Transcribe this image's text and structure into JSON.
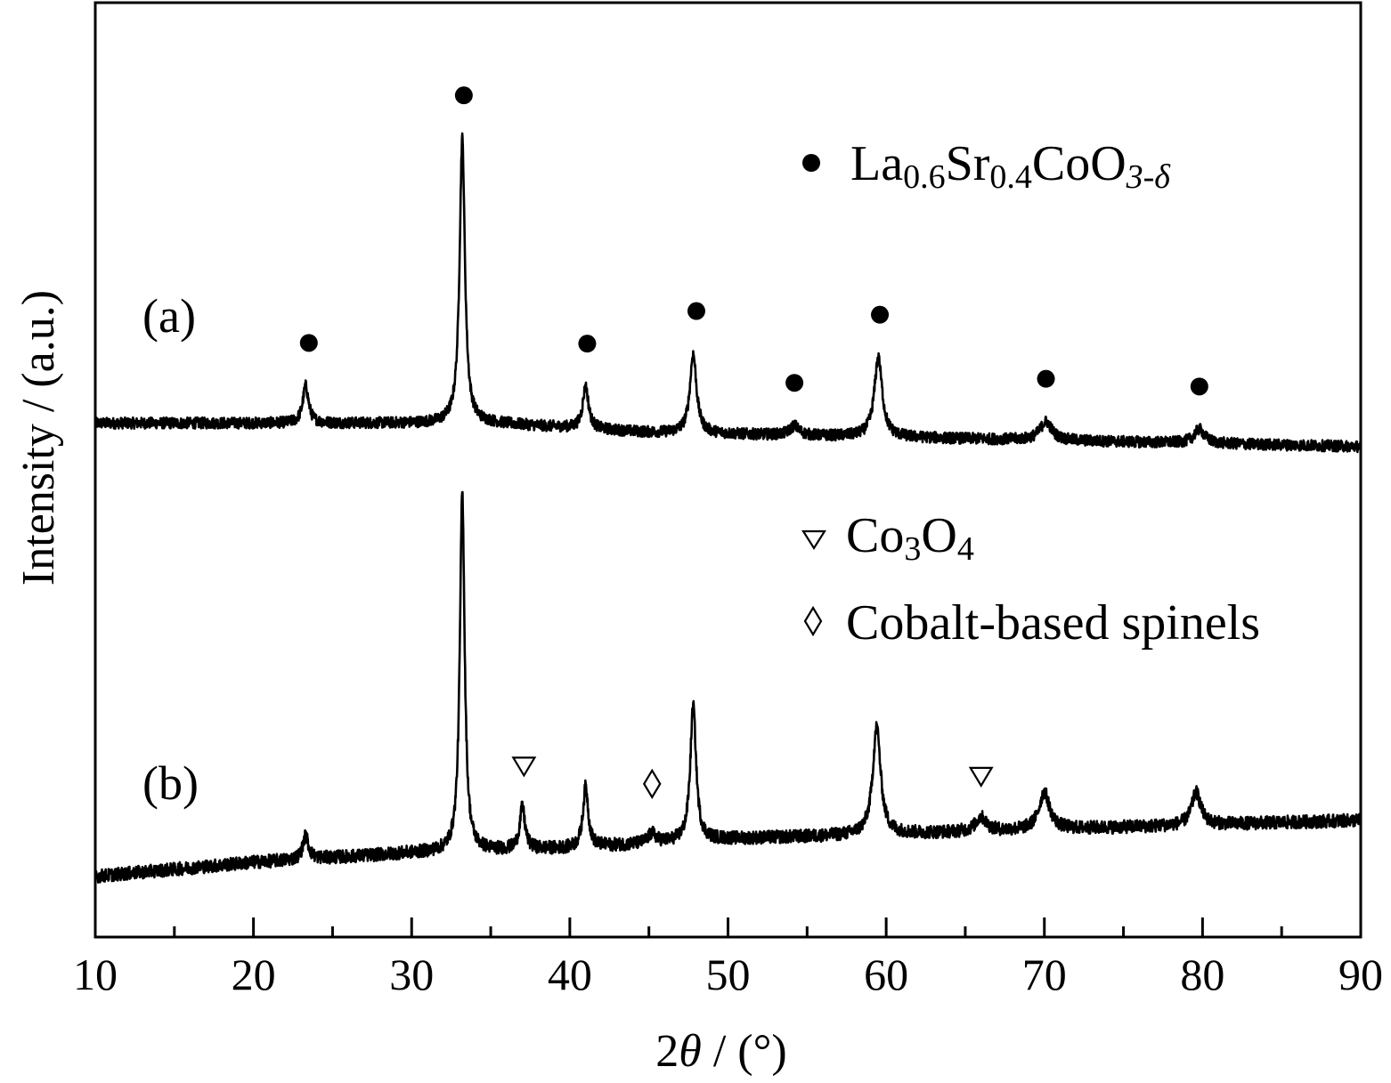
{
  "chart_data": {
    "type": "line",
    "xlabel_prefix": "2",
    "xlabel_symbol": "θ",
    "xlabel_suffix": " / (°)",
    "ylabel": "Intensity / (a.u.)",
    "xlim": [
      10,
      90
    ],
    "x_ticks": [
      "10",
      "20",
      "30",
      "40",
      "50",
      "60",
      "70",
      "80",
      "90"
    ],
    "y_ticks": [],
    "grid": false,
    "y_relative": {
      "offset_a": 0.55,
      "offset_b": 0.09
    },
    "series": [
      {
        "name": "(a)",
        "baseline": [
          [
            10,
            0.0
          ],
          [
            30,
            0.0
          ],
          [
            35,
            0.0
          ],
          [
            45,
            -0.01
          ],
          [
            60,
            -0.015
          ],
          [
            75,
            -0.02
          ],
          [
            90,
            -0.025
          ]
        ],
        "peaks": [
          {
            "x": 23.3,
            "h": 0.04,
            "w": 0.22
          },
          {
            "x": 33.2,
            "h": 0.305,
            "w": 0.2
          },
          {
            "x": 41.0,
            "h": 0.045,
            "w": 0.22
          },
          {
            "x": 47.8,
            "h": 0.085,
            "w": 0.25
          },
          {
            "x": 54.2,
            "h": 0.01,
            "w": 0.35
          },
          {
            "x": 59.5,
            "h": 0.085,
            "w": 0.3
          },
          {
            "x": 70.1,
            "h": 0.02,
            "w": 0.45
          },
          {
            "x": 79.8,
            "h": 0.015,
            "w": 0.4
          }
        ],
        "noise": 0.006
      },
      {
        "name": "(b)",
        "baseline": [
          [
            10,
            -0.025
          ],
          [
            20,
            -0.01
          ],
          [
            30,
            0.0
          ],
          [
            40,
            0.005
          ],
          [
            50,
            0.015
          ],
          [
            60,
            0.02
          ],
          [
            70,
            0.025
          ],
          [
            80,
            0.03
          ],
          [
            90,
            0.035
          ]
        ],
        "peaks": [
          {
            "x": 23.3,
            "h": 0.025,
            "w": 0.22
          },
          {
            "x": 33.2,
            "h": 0.385,
            "w": 0.18
          },
          {
            "x": 37.0,
            "h": 0.045,
            "w": 0.2
          },
          {
            "x": 41.0,
            "h": 0.065,
            "w": 0.2
          },
          {
            "x": 45.2,
            "h": 0.01,
            "w": 0.3
          },
          {
            "x": 47.8,
            "h": 0.145,
            "w": 0.22
          },
          {
            "x": 59.4,
            "h": 0.115,
            "w": 0.3
          },
          {
            "x": 66.0,
            "h": 0.015,
            "w": 0.4
          },
          {
            "x": 70.0,
            "h": 0.04,
            "w": 0.4
          },
          {
            "x": 79.6,
            "h": 0.035,
            "w": 0.35
          }
        ],
        "noise": 0.007
      }
    ],
    "annotations": {
      "a_dots": [
        23.5,
        33.3,
        41.1,
        48.0,
        54.2,
        59.6,
        70.1,
        79.8
      ],
      "co3o4_triangles": [
        37.1,
        66.0
      ],
      "spinel_diamonds": [
        45.2
      ]
    },
    "curve_labels": [
      "(a)",
      "(b)"
    ],
    "legend": {
      "lsco": {
        "parts": [
          "La",
          "0.6",
          "Sr",
          "0.4",
          "CoO",
          "3-δ"
        ]
      },
      "co3o4": {
        "parts": [
          "Co",
          "3",
          "O",
          "4"
        ]
      },
      "spinel": {
        "text": "Cobalt-based spinels"
      }
    }
  }
}
